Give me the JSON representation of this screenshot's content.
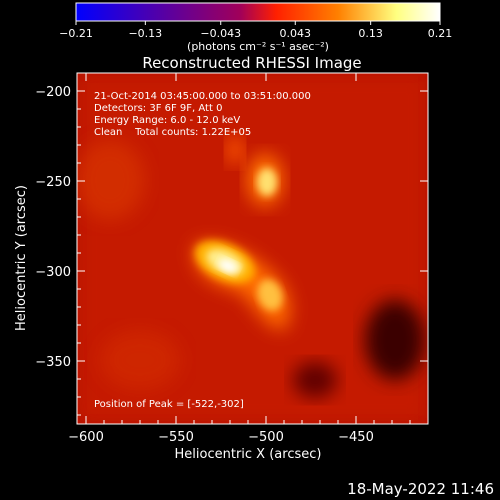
{
  "chart_data": {
    "type": "heatmap",
    "title": "Reconstructed RHESSI Image",
    "xlabel": "Heliocentric X (arcsec)",
    "ylabel": "Heliocentric Y (arcsec)",
    "xlim": [
      -605,
      -410
    ],
    "ylim": [
      -385,
      -190
    ],
    "x_ticks": [
      -600,
      -550,
      -500,
      -450
    ],
    "y_ticks": [
      -200,
      -250,
      -300,
      -350
    ],
    "x_tick_labels": [
      "−600",
      "−550",
      "−500",
      "−450"
    ],
    "y_tick_labels": [
      "−200",
      "−250",
      "−300",
      "−350"
    ],
    "colorbar": {
      "range": [
        -0.21,
        0.21
      ],
      "ticks": [
        -0.21,
        -0.13,
        -0.043,
        0.043,
        0.13,
        0.21
      ],
      "tick_labels": [
        "−0.21",
        "−0.13",
        "−0.043",
        "0.043",
        "0.13",
        "0.21"
      ],
      "unit_label": "(photons cm⁻² s⁻¹ asec⁻²)",
      "colors": [
        "#0000ff",
        "#5a00a0",
        "#a0005a",
        "#ff2000",
        "#ff8000",
        "#ffff80",
        "#ffffff"
      ]
    },
    "annotations": [
      "21-Oct-2014 03:45:00.000 to 03:51:00.000",
      "Detectors: 3F 6F 9F, Att 0",
      "Energy Range: 6.0 - 12.0 keV",
      "Clean    Total counts: 1.22E+05"
    ],
    "peak_label": "Position of Peak = [-522,-302]",
    "sources": [
      {
        "x": -522,
        "y": -302,
        "peak": 0.21
      },
      {
        "x": -500,
        "y": -263,
        "peak": 0.16
      },
      {
        "x": -495,
        "y": -310,
        "peak": 0.14
      }
    ]
  },
  "footer_date": "18-May-2022 11:46"
}
